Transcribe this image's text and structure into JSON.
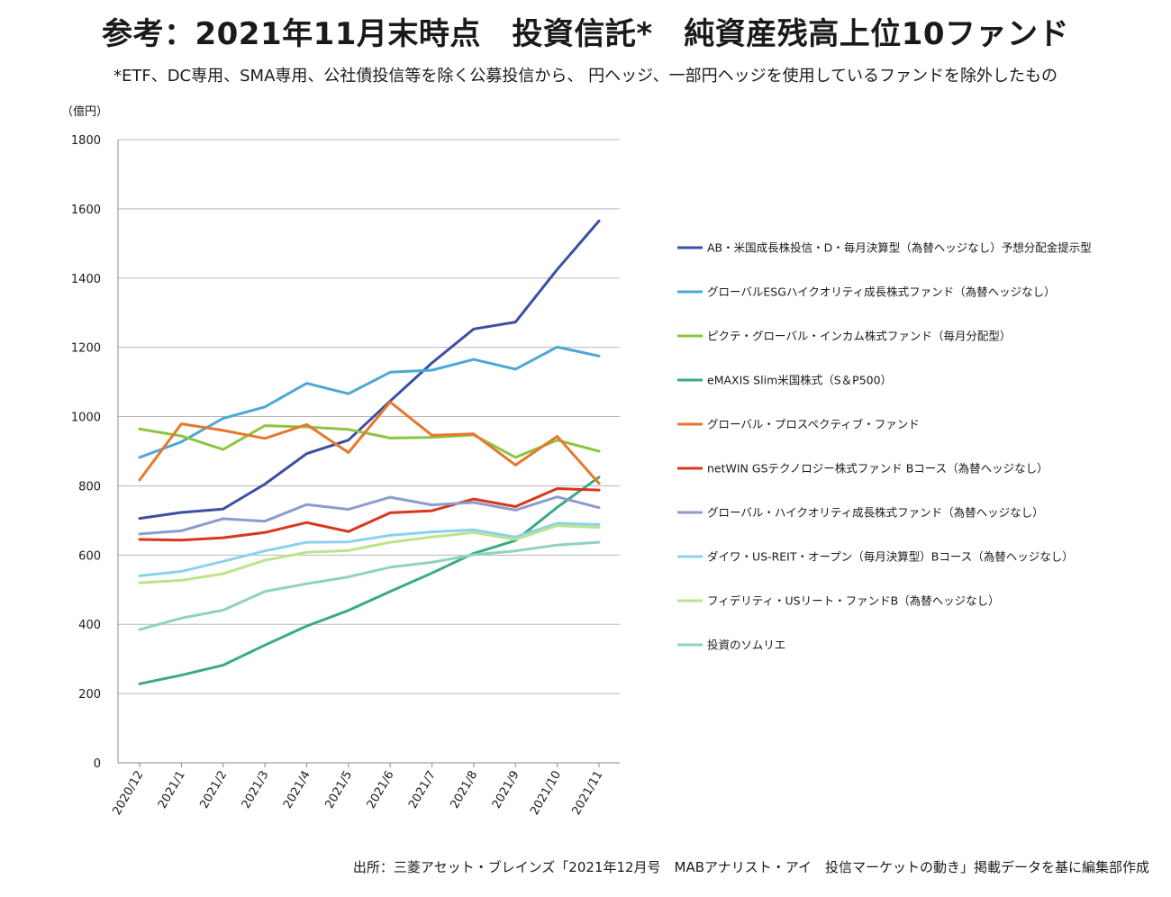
{
  "title": "参考：2021年11月末時点　投資信託*　純資産残高上位10ファンド",
  "subtitle": "*ETF、DC専用、SMA専用、公社債投信等を除く公募投信から、 円ヘッジ、一部円ヘッジを使用しているファンドを除外したもの",
  "source": "出所：三菱アセット・ブレインズ「2021年12月号　MABアナリスト・アイ　投信マーケットの動き」掲載データを基に編集部作成",
  "chart_data": {
    "type": "line",
    "unit_label": "（億円）",
    "x": [
      "2020/12",
      "2021/1",
      "2021/2",
      "2021/3",
      "2021/4",
      "2021/5",
      "2021/6",
      "2021/7",
      "2021/8",
      "2021/9",
      "2021/10",
      "2021/11"
    ],
    "ylim": [
      0,
      1800
    ],
    "yticks": [
      0,
      200,
      400,
      600,
      800,
      1000,
      1200,
      1400,
      1600,
      1800
    ],
    "grid": "horizontal",
    "legend_position": "right",
    "series": [
      {
        "name": "AB・米国成長株投信・D・毎月決算型（為替ヘッジなし）予想分配金提示型",
        "color": "#3b4fa3",
        "values": [
          706,
          723,
          733,
          805,
          893,
          932,
          1045,
          1155,
          1253,
          1273,
          1425,
          1565
        ]
      },
      {
        "name": "グローバルESGハイクオリティ成長株式ファンド（為替ヘッジなし）",
        "color": "#4ba8d6",
        "values": [
          882,
          927,
          995,
          1028,
          1096,
          1066,
          1128,
          1134,
          1165,
          1137,
          1201,
          1175
        ]
      },
      {
        "name": "ピクテ・グローバル・インカム株式ファンド（毎月分配型）",
        "color": "#8cc63f",
        "values": [
          964,
          944,
          905,
          974,
          970,
          963,
          938,
          940,
          947,
          882,
          932,
          900
        ]
      },
      {
        "name": "eMAXIS Slim米国株式（S＆P500）",
        "color": "#3aaa85",
        "values": [
          228,
          253,
          282,
          340,
          395,
          440,
          495,
          548,
          605,
          642,
          738,
          825
        ]
      },
      {
        "name": "グローバル・プロスペクティブ・ファンド",
        "color": "#e8772e",
        "values": [
          817,
          979,
          960,
          937,
          977,
          896,
          1042,
          946,
          950,
          860,
          943,
          807
        ]
      },
      {
        "name": "netWIN GSテクノロジー株式ファンド Bコース（為替ヘッジなし）",
        "color": "#d8371e",
        "values": [
          645,
          643,
          650,
          665,
          694,
          668,
          722,
          728,
          762,
          740,
          792,
          788
        ]
      },
      {
        "name": "グローバル・ハイクオリティ成長株式ファンド（為替ヘッジなし）",
        "color": "#8e9ccc",
        "values": [
          661,
          670,
          705,
          698,
          746,
          732,
          767,
          745,
          752,
          730,
          768,
          737
        ]
      },
      {
        "name": "ダイワ・US-REIT・オープン（毎月決算型）Bコース（為替ヘッジなし）",
        "color": "#8dd0f0",
        "values": [
          540,
          553,
          582,
          612,
          637,
          638,
          657,
          667,
          673,
          652,
          692,
          688
        ]
      },
      {
        "name": "フィデリティ・USリート・ファンドB（為替ヘッジなし）",
        "color": "#bde48a",
        "values": [
          520,
          527,
          546,
          585,
          608,
          613,
          637,
          652,
          665,
          645,
          685,
          680
        ]
      },
      {
        "name": "投資のソムリエ",
        "color": "#8fd3be",
        "values": [
          385,
          418,
          441,
          495,
          517,
          537,
          565,
          579,
          601,
          612,
          629,
          637
        ]
      }
    ]
  }
}
